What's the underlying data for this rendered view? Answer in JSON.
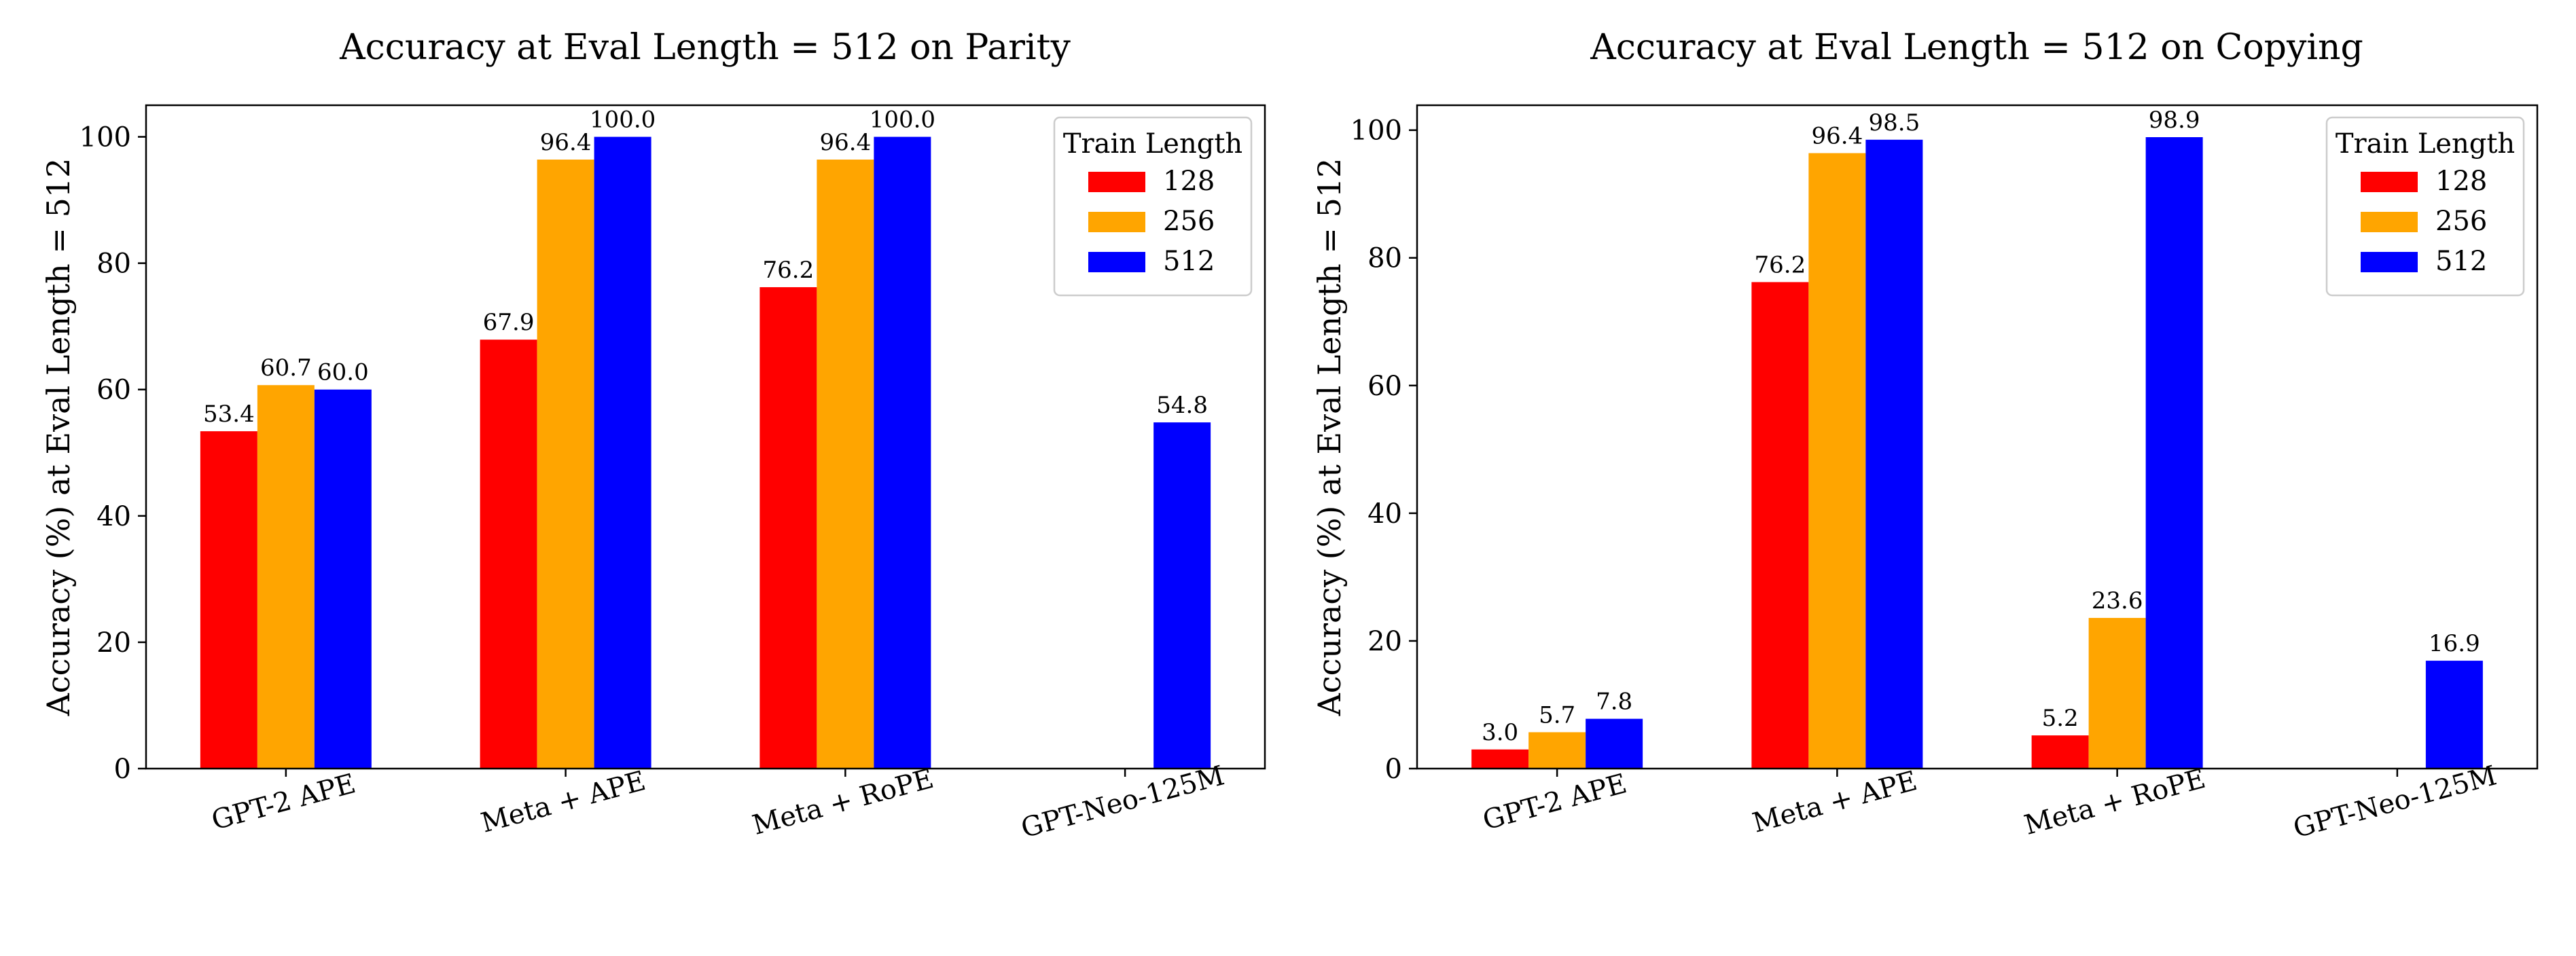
{
  "colors": {
    "128": "#ff0000",
    "256": "#ffa500",
    "512": "#0000ff"
  },
  "chart_data": [
    {
      "type": "bar",
      "title": "Accuracy at Eval Length = 512 on Parity",
      "xlabel": "",
      "ylabel": "Accuracy (%) at Eval Length = 512",
      "ylim": [
        0,
        105
      ],
      "yticks": [
        0,
        20,
        40,
        60,
        80,
        100
      ],
      "categories": [
        "GPT-2 APE",
        "Meta + APE",
        "Meta + RoPE",
        "GPT-Neo-125M"
      ],
      "legend": {
        "title": "Train Length",
        "position": "top-right"
      },
      "series": [
        {
          "name": "128",
          "color": "#ff0000",
          "values": [
            53.4,
            67.9,
            76.2,
            null
          ],
          "labels": [
            "53.4",
            "67.9",
            "76.2",
            ""
          ]
        },
        {
          "name": "256",
          "color": "#ffa500",
          "values": [
            60.7,
            96.4,
            96.4,
            null
          ],
          "labels": [
            "60.7",
            "96.4",
            "96.4",
            ""
          ]
        },
        {
          "name": "512",
          "color": "#0000ff",
          "values": [
            60.0,
            100.0,
            100.0,
            54.8
          ],
          "labels": [
            "60.0",
            "100.0",
            "100.0",
            "54.8"
          ]
        }
      ]
    },
    {
      "type": "bar",
      "title": "Accuracy at Eval Length = 512 on Copying",
      "xlabel": "",
      "ylabel": "Accuracy (%) at Eval Length = 512",
      "ylim": [
        0,
        103.9
      ],
      "yticks": [
        0,
        20,
        40,
        60,
        80,
        100
      ],
      "categories": [
        "GPT-2 APE",
        "Meta + APE",
        "Meta + RoPE",
        "GPT-Neo-125M"
      ],
      "legend": {
        "title": "Train Length",
        "position": "top-right"
      },
      "series": [
        {
          "name": "128",
          "color": "#ff0000",
          "values": [
            3.0,
            76.2,
            5.2,
            null
          ],
          "labels": [
            "3.0",
            "76.2",
            "5.2",
            ""
          ]
        },
        {
          "name": "256",
          "color": "#ffa500",
          "values": [
            5.7,
            96.4,
            23.6,
            null
          ],
          "labels": [
            "5.7",
            "96.4",
            "23.6",
            ""
          ]
        },
        {
          "name": "512",
          "color": "#0000ff",
          "values": [
            7.8,
            98.5,
            98.9,
            16.9
          ],
          "labels": [
            "7.8",
            "98.5",
            "98.9",
            "16.9"
          ]
        }
      ]
    }
  ]
}
